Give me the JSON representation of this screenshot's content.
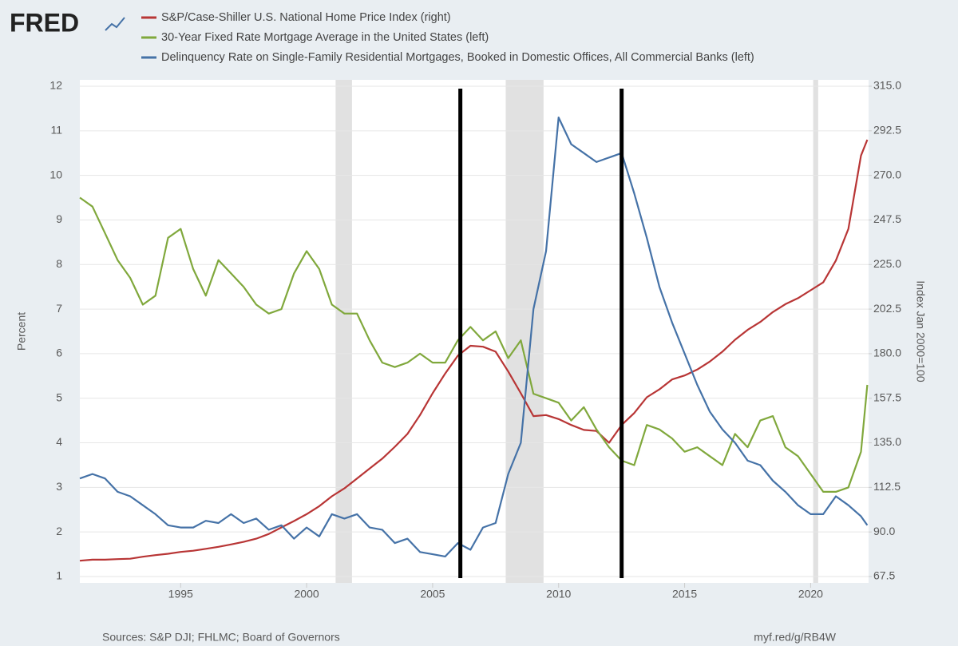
{
  "logo": "FRED",
  "chart_data": {
    "type": "line",
    "y_label": "Percent",
    "y2_label": "Index Jan 2000=100",
    "source": "Sources: S&P DJI; FHLMC; Board of Governors",
    "link": "myf.red/g/RB4W",
    "x": [
      1991,
      1991.5,
      1992,
      1992.5,
      1993,
      1993.5,
      1994,
      1994.5,
      1995,
      1995.5,
      1996,
      1996.5,
      1997,
      1997.5,
      1998,
      1998.5,
      1999,
      1999.5,
      2000,
      2000.5,
      2001,
      2001.5,
      2002,
      2002.5,
      2003,
      2003.5,
      2004,
      2004.5,
      2005,
      2005.5,
      2006,
      2006.5,
      2007,
      2007.5,
      2008,
      2008.5,
      2009,
      2009.5,
      2010,
      2010.5,
      2011,
      2011.5,
      2012,
      2012.5,
      2013,
      2013.5,
      2014,
      2014.5,
      2015,
      2015.5,
      2016,
      2016.5,
      2017,
      2017.5,
      2018,
      2018.5,
      2019,
      2019.5,
      2020,
      2020.5,
      2021,
      2021.5,
      2022,
      2022.25
    ],
    "series": [
      {
        "name": "S&P/Case-Shiller U.S. National Home Price Index (right)",
        "color": "#b83535",
        "axis": "y2",
        "values": [
          75.5,
          76,
          76,
          76.3,
          76.5,
          77.5,
          78.3,
          79,
          79.9,
          80.5,
          81.5,
          82.5,
          83.7,
          85,
          86.6,
          89,
          92.3,
          95.5,
          99,
          103,
          108,
          112,
          117,
          122,
          127,
          133,
          139.5,
          149,
          160,
          170,
          179,
          184,
          183.5,
          181,
          171,
          160,
          148.5,
          149,
          147,
          144,
          141.5,
          141,
          135,
          144,
          150,
          158,
          162,
          167,
          169,
          172,
          176,
          181,
          187,
          192,
          196,
          201,
          205,
          208,
          212,
          216,
          227,
          243,
          280,
          288
        ]
      },
      {
        "name": "30-Year Fixed Rate Mortgage Average in the United States (left)",
        "color": "#80a83c",
        "values": [
          9.5,
          9.3,
          8.7,
          8.1,
          7.7,
          7.1,
          7.3,
          8.6,
          8.8,
          7.9,
          7.3,
          8.1,
          7.8,
          7.5,
          7.1,
          6.9,
          7.0,
          7.8,
          8.3,
          7.9,
          7.1,
          6.9,
          6.9,
          6.3,
          5.8,
          5.7,
          5.8,
          6.0,
          5.8,
          5.8,
          6.3,
          6.6,
          6.3,
          6.5,
          5.9,
          6.3,
          5.1,
          5.0,
          4.9,
          4.5,
          4.8,
          4.3,
          3.9,
          3.6,
          3.5,
          4.4,
          4.3,
          4.1,
          3.8,
          3.9,
          3.7,
          3.5,
          4.2,
          3.9,
          4.5,
          4.6,
          3.9,
          3.7,
          3.3,
          2.9,
          2.9,
          3.0,
          3.8,
          5.3
        ]
      },
      {
        "name": "Delinquency Rate on Single-Family Residential Mortgages, Booked in Domestic Offices, All Commercial Banks (left)",
        "color": "#4572a7",
        "values": [
          3.2,
          3.3,
          3.2,
          2.9,
          2.8,
          2.6,
          2.4,
          2.15,
          2.1,
          2.1,
          2.25,
          2.2,
          2.4,
          2.2,
          2.3,
          2.05,
          2.15,
          1.85,
          2.1,
          1.9,
          2.4,
          2.3,
          2.4,
          2.1,
          2.05,
          1.75,
          1.85,
          1.55,
          1.5,
          1.45,
          1.75,
          1.6,
          2.1,
          2.2,
          3.3,
          4.0,
          7.0,
          8.3,
          11.3,
          10.7,
          10.5,
          10.3,
          10.4,
          10.5,
          9.6,
          8.6,
          7.5,
          6.7,
          6.0,
          5.3,
          4.7,
          4.3,
          4.0,
          3.6,
          3.5,
          3.15,
          2.9,
          2.6,
          2.4,
          2.4,
          2.8,
          2.6,
          2.35,
          2.15
        ]
      }
    ],
    "xlim": [
      1991,
      2022.3
    ],
    "xticks": [
      1995,
      2000,
      2005,
      2010,
      2015,
      2020
    ],
    "ylim": [
      1,
      12
    ],
    "yticks": [
      1,
      2,
      3,
      4,
      5,
      6,
      7,
      8,
      9,
      10,
      11,
      12
    ],
    "y2lim": [
      67.5,
      315
    ],
    "y2ticks": [
      67.5,
      {
        "value": 90,
        "label": "90.0"
      },
      112.5,
      {
        "value": 135,
        "label": "135.0"
      },
      157.5,
      {
        "value": 180,
        "label": "180.0"
      },
      202.5,
      {
        "value": 225,
        "label": "225.0"
      },
      247.5,
      {
        "value": 270,
        "label": "270.0"
      },
      292.5,
      {
        "value": 315,
        "label": "315.0"
      }
    ],
    "grid": true,
    "recessions": [
      [
        2001.15,
        2001.8
      ],
      [
        2007.9,
        2009.4
      ],
      [
        2020.1,
        2020.3
      ]
    ],
    "recession_color": "#e1e1e1",
    "vertical_lines": [
      2006.1,
      2012.5
    ],
    "vertical_line_color": "#000000"
  }
}
